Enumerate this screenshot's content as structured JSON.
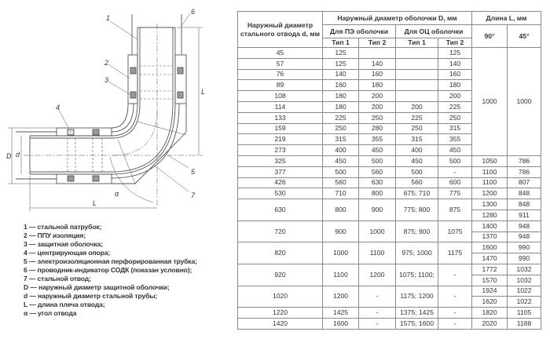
{
  "diagram": {
    "callouts": [
      "1",
      "2",
      "3",
      "4",
      "5",
      "6",
      "7"
    ],
    "dims": {
      "L_vertical": "L",
      "L_horizontal": "L",
      "D": "D",
      "d": "d",
      "alpha": "α"
    }
  },
  "legend": [
    "1 — стальной патрубок;",
    "2 — ППУ изоляция;",
    "3 — защитная оболочка;",
    "4 — центрирующая опора;",
    "5 — электроизоляционная перфорированная трубка;",
    "6 — проводник-индикатор СОДК (показан условно);",
    "7 — стальной отвод;",
    "D — наружный диаметр защитной оболочки;",
    "d — наружный диаметр стальной трубы;",
    "L — длина плеча отвода;",
    "α — угол отвода"
  ],
  "table": {
    "headers": {
      "steel_d": "Наружный диаметр стального отвода d, мм",
      "shell_D": "Наружный диаметр оболочки D, мм",
      "length_L": "Длина L, мм",
      "pe": "Для ПЭ оболочки",
      "oc": "Для ОЦ оболочки",
      "type1": "Тип 1",
      "type2": "Тип 2",
      "deg90": "90°",
      "deg45": "45°"
    },
    "merged_length": {
      "l90": "1000",
      "l45": "1000"
    },
    "rows_merged": [
      {
        "d": "45",
        "pe1": "125",
        "pe2": "",
        "oc1": "",
        "oc2": "125"
      },
      {
        "d": "57",
        "pe1": "125",
        "pe2": "140",
        "oc1": "",
        "oc2": "140"
      },
      {
        "d": "76",
        "pe1": "140",
        "pe2": "160",
        "oc1": "",
        "oc2": "160"
      },
      {
        "d": "89",
        "pe1": "160",
        "pe2": "180",
        "oc1": "",
        "oc2": "180"
      },
      {
        "d": "108",
        "pe1": "180",
        "pe2": "200",
        "oc1": "",
        "oc2": "200"
      },
      {
        "d": "114",
        "pe1": "180",
        "pe2": "200",
        "oc1": "200",
        "oc2": "225"
      },
      {
        "d": "133",
        "pe1": "225",
        "pe2": "250",
        "oc1": "225",
        "oc2": "250"
      },
      {
        "d": "159",
        "pe1": "250",
        "pe2": "280",
        "oc1": "250",
        "oc2": "315"
      },
      {
        "d": "219",
        "pe1": "315",
        "pe2": "355",
        "oc1": "315",
        "oc2": "355"
      },
      {
        "d": "273",
        "pe1": "400",
        "pe2": "450",
        "oc1": "400",
        "oc2": "450"
      }
    ],
    "rows": [
      {
        "d": "325",
        "pe1": "450",
        "pe2": "500",
        "oc1": "450",
        "oc2": "500",
        "l90": [
          "1050"
        ],
        "l45": [
          "786"
        ]
      },
      {
        "d": "377",
        "pe1": "500",
        "pe2": "560",
        "oc1": "500",
        "oc2": "-",
        "l90": [
          "1100"
        ],
        "l45": [
          "786"
        ]
      },
      {
        "d": "426",
        "pe1": "560",
        "pe2": "630",
        "oc1": "560",
        "oc2": "600",
        "l90": [
          "1100"
        ],
        "l45": [
          "807"
        ]
      },
      {
        "d": "530",
        "pe1": "710",
        "pe2": "800",
        "oc1": "675; 710",
        "oc2": "775",
        "l90": [
          "1200"
        ],
        "l45": [
          "848"
        ]
      },
      {
        "d": "630",
        "pe1": "800",
        "pe2": "900",
        "oc1": "775; 800",
        "oc2": "875",
        "l90": [
          "1300",
          "1280"
        ],
        "l45": [
          "848",
          "911"
        ]
      },
      {
        "d": "720",
        "pe1": "900",
        "pe2": "1000",
        "oc1": "875; 900",
        "oc2": "1075",
        "l90": [
          "1400",
          "1370"
        ],
        "l45": [
          "948",
          "948"
        ]
      },
      {
        "d": "820",
        "pe1": "1000",
        "pe2": "1100",
        "oc1": "975; 1000",
        "oc2": "1175",
        "l90": [
          "1600",
          "1470"
        ],
        "l45": [
          "990",
          "990"
        ]
      },
      {
        "d": "920",
        "pe1": "1100",
        "pe2": "1200",
        "oc1": "1075; 1100;",
        "oc2": "-",
        "l90": [
          "1772",
          "1570"
        ],
        "l45": [
          "1032",
          "1032"
        ]
      },
      {
        "d": "1020",
        "pe1": "1200",
        "pe2": "-",
        "oc1": "1175; 1200",
        "oc2": "-",
        "l90": [
          "1924",
          "1620"
        ],
        "l45": [
          "1022",
          "1022"
        ]
      },
      {
        "d": "1220",
        "pe1": "1425",
        "pe2": "-",
        "oc1": "1375; 1425",
        "oc2": "-",
        "l90": [
          "1820"
        ],
        "l45": [
          "1105"
        ]
      },
      {
        "d": "1420",
        "pe1": "1600",
        "pe2": "-",
        "oc1": "1575; 1600",
        "oc2": "-",
        "l90": [
          "2020"
        ],
        "l45": [
          "1188"
        ]
      }
    ]
  }
}
